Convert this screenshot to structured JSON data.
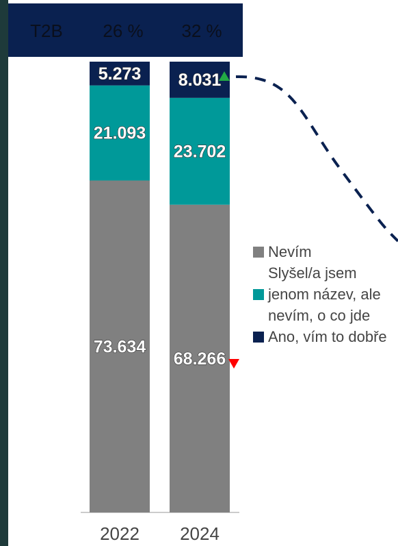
{
  "chart_data": {
    "type": "stacked-bar",
    "header": {
      "label": "T2B",
      "values": [
        "26 %",
        "32 %"
      ]
    },
    "categories": [
      "2022",
      "2024"
    ],
    "series": [
      {
        "name": "Nevím",
        "color": "#808080",
        "values": [
          73.634,
          68.266
        ]
      },
      {
        "name": "Slyšel/a jsem jenom název, ale nevím, o co jde",
        "color": "#009999",
        "values": [
          21.093,
          23.702
        ]
      },
      {
        "name": "Ano, vím to dobře",
        "color": "#0a2150",
        "values": [
          5.273,
          8.031
        ]
      }
    ],
    "ylim": [
      0,
      100
    ]
  }
}
